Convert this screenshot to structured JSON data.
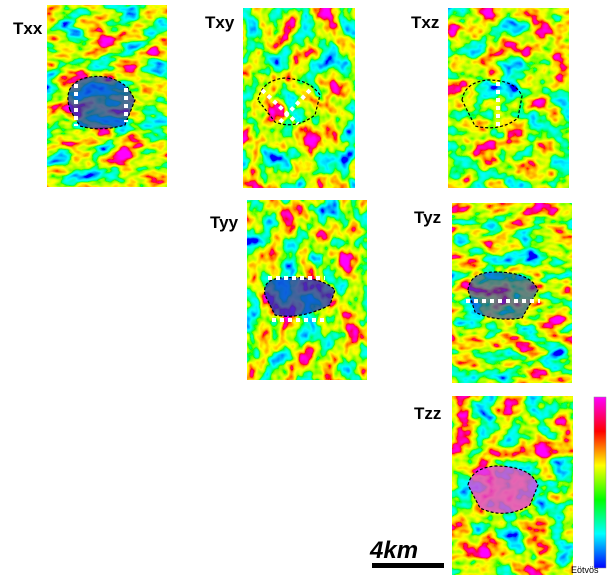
{
  "panels": [
    {
      "label": "Txx"
    },
    {
      "label": "Txy"
    },
    {
      "label": "Txz"
    },
    {
      "label": "Tyy"
    },
    {
      "label": "Tyz"
    },
    {
      "label": "Tzz"
    }
  ],
  "scale_bar": "4km",
  "colorbar": {
    "unit": "Eötvös"
  }
}
